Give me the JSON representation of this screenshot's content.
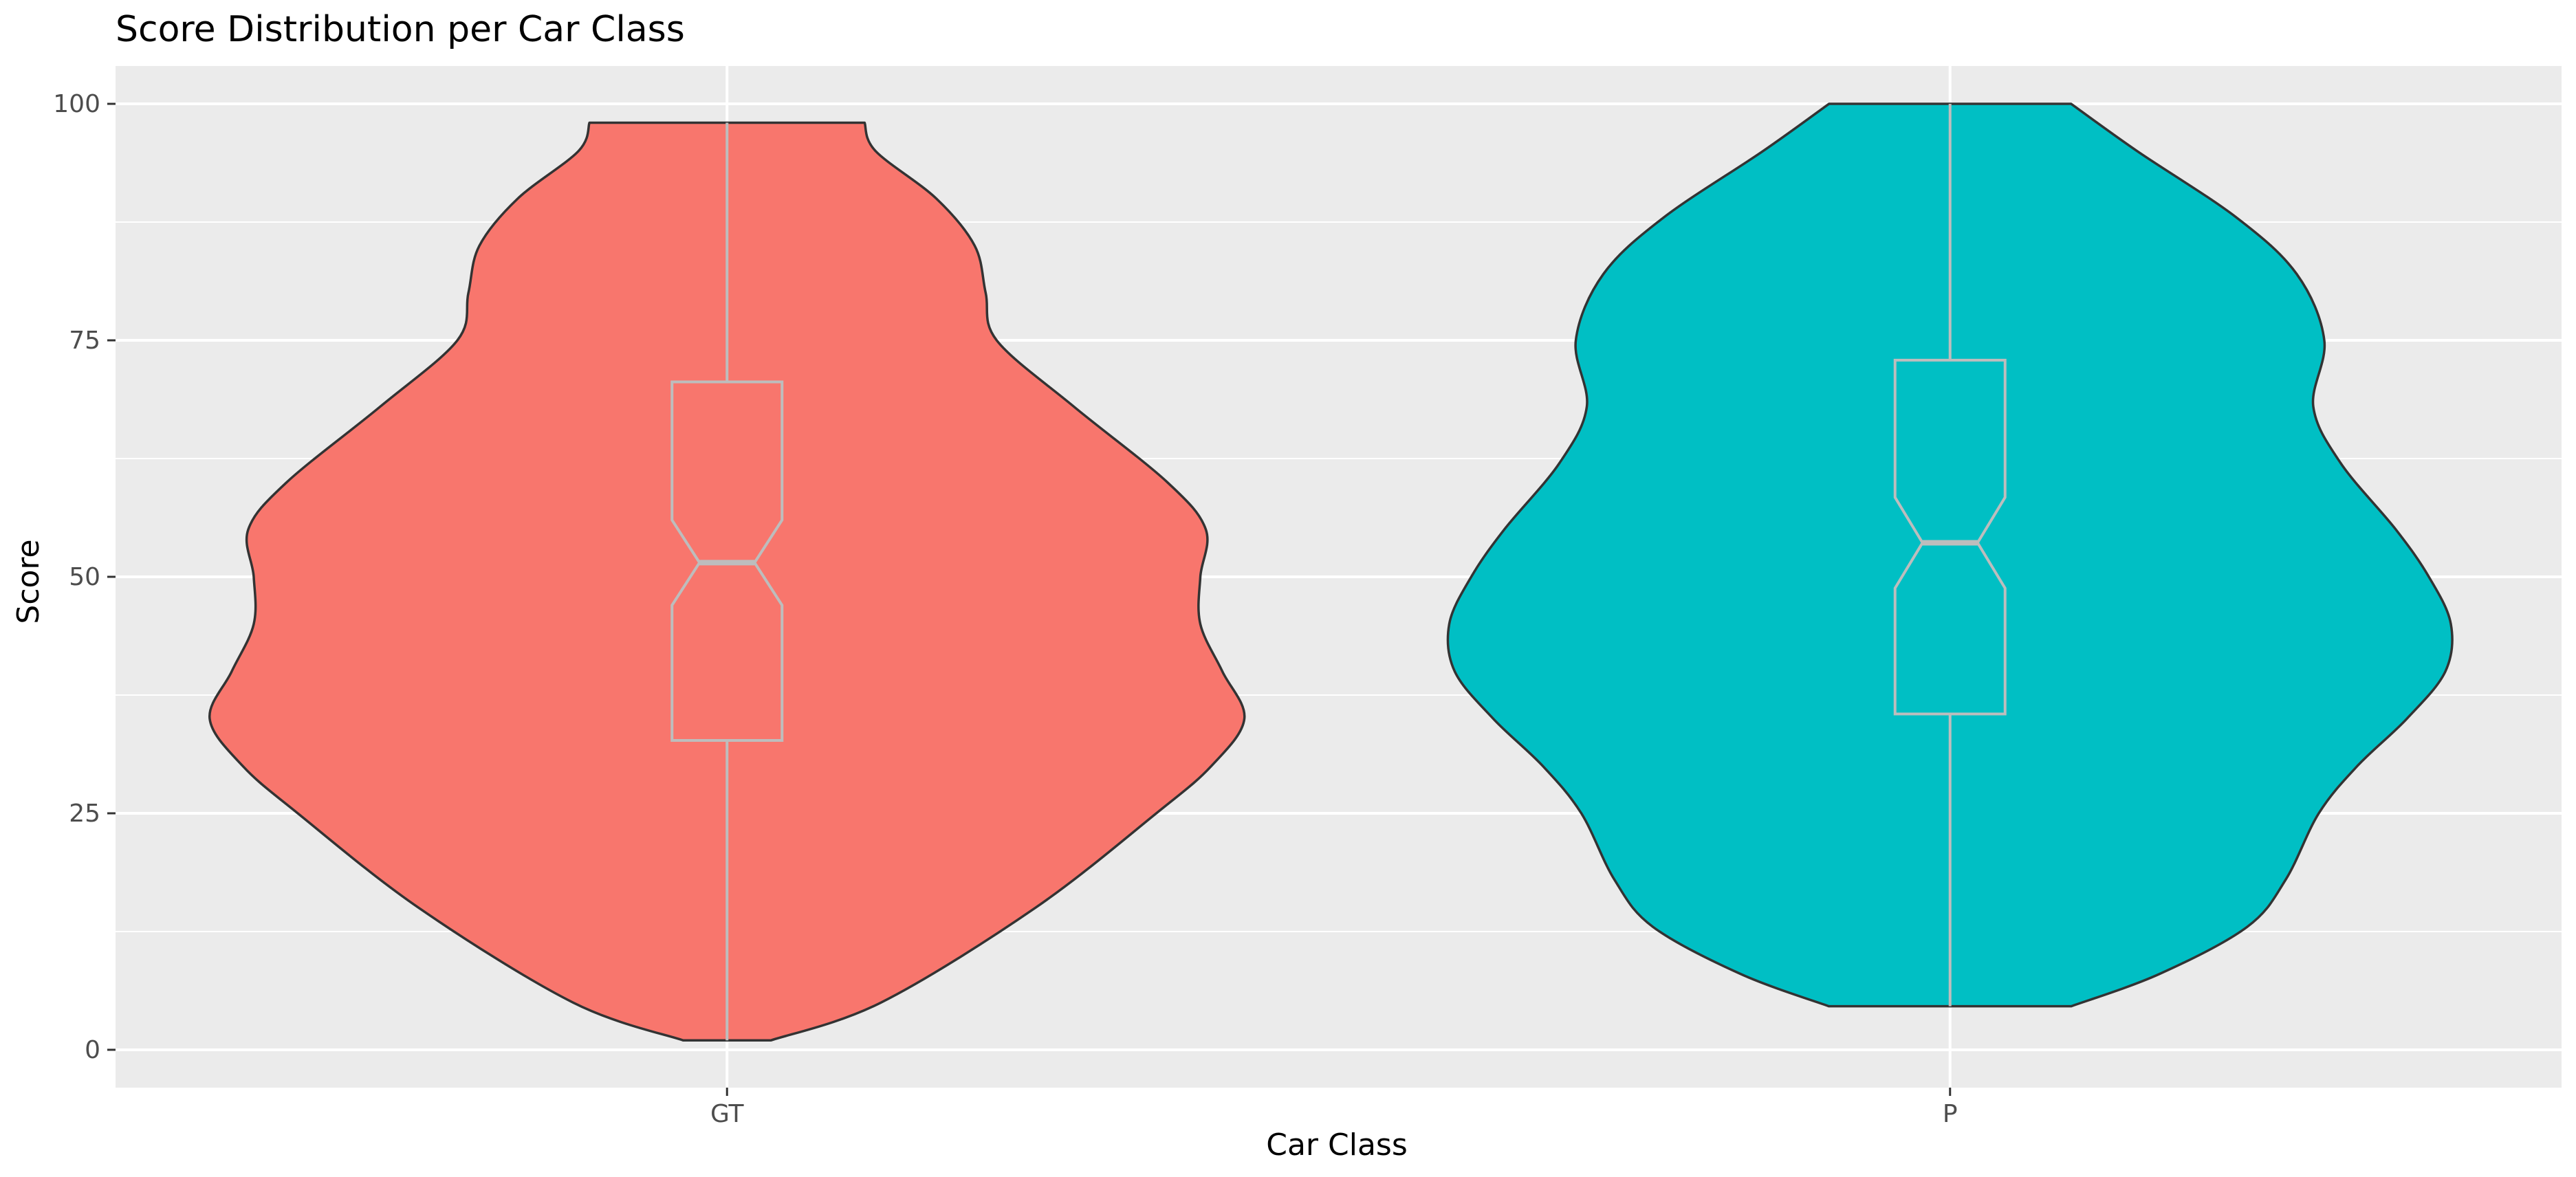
{
  "chart_data": {
    "type": "violin",
    "title": "Score Distribution per Car Class",
    "xlabel": "Car Class",
    "ylabel": "Score",
    "ylim": [
      -4,
      104
    ],
    "yticks": [
      0,
      25,
      50,
      75,
      100
    ],
    "categories": [
      "GT",
      "P"
    ],
    "grid": true,
    "legend": "none",
    "overlay": "notched boxplot",
    "groups": [
      {
        "name": "GT",
        "color": "#F8766D",
        "min": 1,
        "max": 98,
        "q1": 32.7,
        "median": 51.5,
        "q3": 70.6,
        "notch_low": 47,
        "notch_high": 56,
        "density_profile": [
          {
            "y": 1,
            "half_width": 0.08
          },
          {
            "y": 5,
            "half_width": 0.28
          },
          {
            "y": 15,
            "half_width": 0.56
          },
          {
            "y": 25,
            "half_width": 0.78
          },
          {
            "y": 30,
            "half_width": 0.88
          },
          {
            "y": 35,
            "half_width": 0.94
          },
          {
            "y": 40,
            "half_width": 0.9
          },
          {
            "y": 45,
            "half_width": 0.86
          },
          {
            "y": 50,
            "half_width": 0.86
          },
          {
            "y": 55,
            "half_width": 0.87
          },
          {
            "y": 60,
            "half_width": 0.8
          },
          {
            "y": 68,
            "half_width": 0.63
          },
          {
            "y": 75,
            "half_width": 0.49
          },
          {
            "y": 80,
            "half_width": 0.47
          },
          {
            "y": 85,
            "half_width": 0.45
          },
          {
            "y": 90,
            "half_width": 0.38
          },
          {
            "y": 95,
            "half_width": 0.27
          },
          {
            "y": 98,
            "half_width": 0.25
          }
        ]
      },
      {
        "name": "P",
        "color": "#00BFC4",
        "min": 4.6,
        "max": 100,
        "q1": 35.5,
        "median": 53.6,
        "q3": 72.9,
        "notch_low": 48.8,
        "notch_high": 58.4,
        "density_profile": [
          {
            "y": 4.6,
            "half_width": 0.22
          },
          {
            "y": 8,
            "half_width": 0.38
          },
          {
            "y": 13,
            "half_width": 0.54
          },
          {
            "y": 18,
            "half_width": 0.61
          },
          {
            "y": 25,
            "half_width": 0.67
          },
          {
            "y": 30,
            "half_width": 0.74
          },
          {
            "y": 35,
            "half_width": 0.83
          },
          {
            "y": 40,
            "half_width": 0.9
          },
          {
            "y": 45,
            "half_width": 0.91
          },
          {
            "y": 50,
            "half_width": 0.87
          },
          {
            "y": 55,
            "half_width": 0.81
          },
          {
            "y": 62,
            "half_width": 0.71
          },
          {
            "y": 68,
            "half_width": 0.66
          },
          {
            "y": 75,
            "half_width": 0.68
          },
          {
            "y": 82,
            "half_width": 0.63
          },
          {
            "y": 88,
            "half_width": 0.52
          },
          {
            "y": 95,
            "half_width": 0.34
          },
          {
            "y": 100,
            "half_width": 0.22
          }
        ]
      }
    ]
  }
}
